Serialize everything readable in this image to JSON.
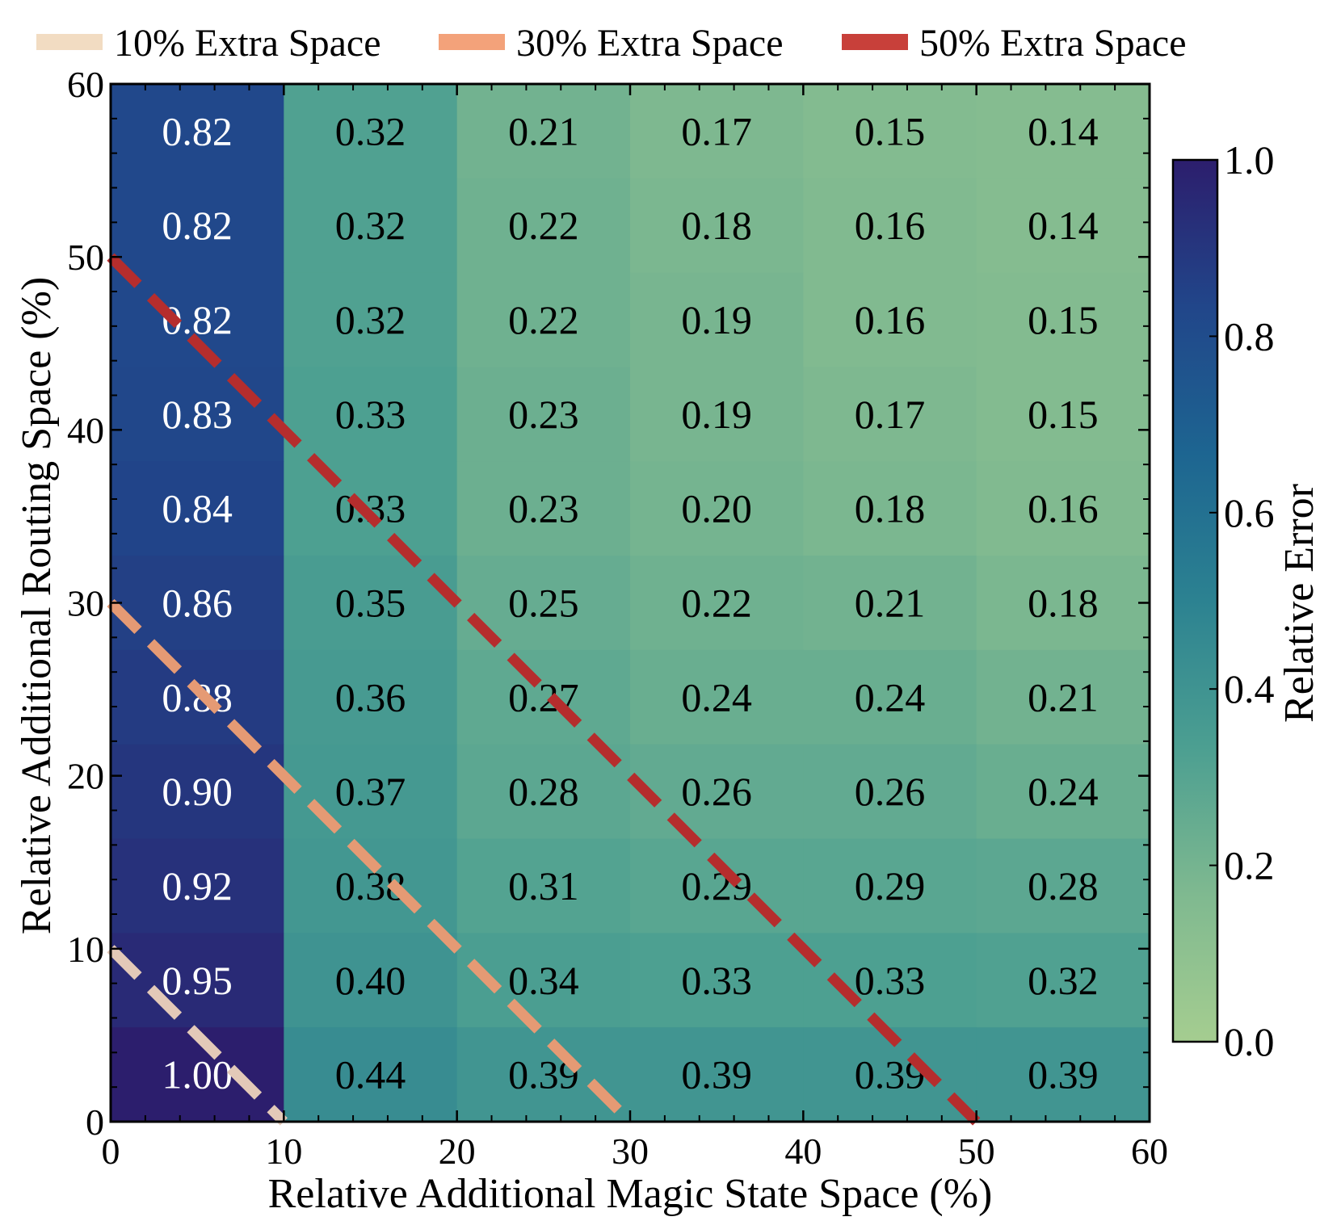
{
  "chart_data": {
    "type": "heatmap",
    "title": "",
    "xlabel": "Relative Additional Magic State Space (%)",
    "ylabel": "Relative Additional Routing Space (%)",
    "xlim": [
      0,
      60
    ],
    "ylim": [
      0,
      60
    ],
    "x_ticks": [
      "0",
      "10",
      "20",
      "30",
      "40",
      "50",
      "60"
    ],
    "y_ticks": [
      "0",
      "10",
      "20",
      "30",
      "40",
      "50",
      "60"
    ],
    "x_centers": [
      5,
      15,
      25,
      35,
      45,
      55
    ],
    "y_centers": [
      2.73,
      8.18,
      13.64,
      19.09,
      24.55,
      30.0,
      35.45,
      40.91,
      46.36,
      51.82,
      57.27
    ],
    "values": [
      [
        0.82,
        0.32,
        0.21,
        0.17,
        0.15,
        0.14
      ],
      [
        0.82,
        0.32,
        0.22,
        0.18,
        0.16,
        0.14
      ],
      [
        0.82,
        0.32,
        0.22,
        0.19,
        0.16,
        0.15
      ],
      [
        0.83,
        0.33,
        0.23,
        0.19,
        0.17,
        0.15
      ],
      [
        0.84,
        0.33,
        0.23,
        0.2,
        0.18,
        0.16
      ],
      [
        0.86,
        0.35,
        0.25,
        0.22,
        0.21,
        0.18
      ],
      [
        0.88,
        0.36,
        0.27,
        0.24,
        0.24,
        0.21
      ],
      [
        0.9,
        0.37,
        0.28,
        0.26,
        0.26,
        0.24
      ],
      [
        0.92,
        0.38,
        0.31,
        0.29,
        0.29,
        0.28
      ],
      [
        0.95,
        0.4,
        0.34,
        0.33,
        0.33,
        0.32
      ],
      [
        1.0,
        0.44,
        0.39,
        0.39,
        0.39,
        0.39
      ]
    ],
    "value_labels": [
      [
        "0.82",
        "0.32",
        "0.21",
        "0.17",
        "0.15",
        "0.14"
      ],
      [
        "0.82",
        "0.32",
        "0.22",
        "0.18",
        "0.16",
        "0.14"
      ],
      [
        "0.82",
        "0.32",
        "0.22",
        "0.19",
        "0.16",
        "0.15"
      ],
      [
        "0.83",
        "0.33",
        "0.23",
        "0.19",
        "0.17",
        "0.15"
      ],
      [
        "0.84",
        "0.33",
        "0.23",
        "0.20",
        "0.18",
        "0.16"
      ],
      [
        "0.86",
        "0.35",
        "0.25",
        "0.22",
        "0.21",
        "0.18"
      ],
      [
        "0.88",
        "0.36",
        "0.27",
        "0.24",
        "0.24",
        "0.21"
      ],
      [
        "0.90",
        "0.37",
        "0.28",
        "0.26",
        "0.26",
        "0.24"
      ],
      [
        "0.92",
        "0.38",
        "0.31",
        "0.29",
        "0.29",
        "0.28"
      ],
      [
        "0.95",
        "0.40",
        "0.34",
        "0.33",
        "0.33",
        "0.32"
      ],
      [
        "1.00",
        "0.44",
        "0.39",
        "0.39",
        "0.39",
        "0.39"
      ]
    ],
    "colorbar": {
      "label": "Relative Error",
      "range": [
        0,
        1
      ],
      "ticks": [
        "0.0",
        "0.2",
        "0.4",
        "0.6",
        "0.8",
        "1.0"
      ],
      "colormap": "crest",
      "stops": [
        "#a5cd90",
        "#7fb990",
        "#4c9f91",
        "#2c8291",
        "#1d6591",
        "#21468a",
        "#2c1e6d"
      ]
    },
    "series": [
      {
        "name": "10% Extra Space",
        "color": "#f2dcc2",
        "x": [
          0,
          10
        ],
        "y": [
          10,
          0
        ]
      },
      {
        "name": "30% Extra Space",
        "color": "#f3a27a",
        "x": [
          0,
          30
        ],
        "y": [
          30,
          0
        ]
      },
      {
        "name": "50% Extra Space",
        "color": "#c8403a",
        "x": [
          0,
          50
        ],
        "y": [
          50,
          0
        ]
      }
    ],
    "line_colors": [
      "#e3c9b8",
      "#e59a74",
      "#b52d2d"
    ],
    "legend_position": "top"
  }
}
